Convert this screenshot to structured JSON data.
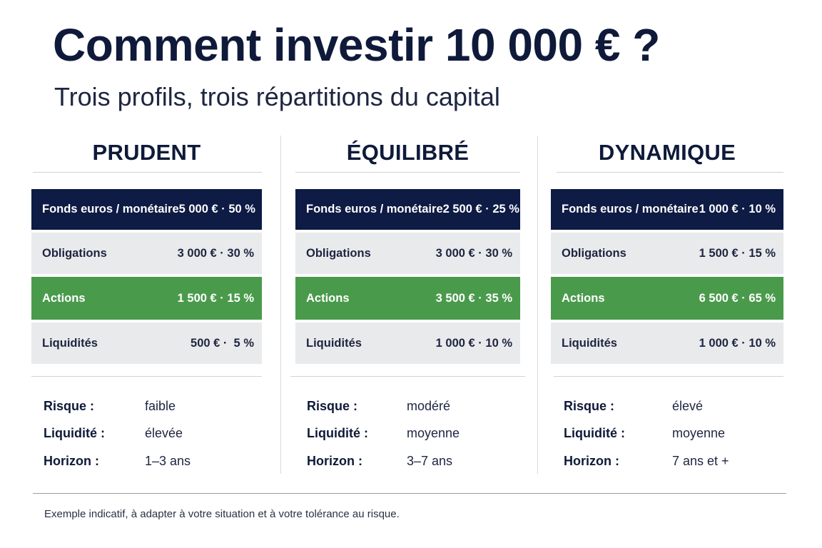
{
  "title": "Comment investir 10 000 € ?",
  "subtitle": "Trois profils, trois répartitions du capital",
  "profiles": [
    {
      "name": "PRUDENT",
      "rows": [
        {
          "label": "Fonds euros / monétaire",
          "value": "5 000 € · 50 %",
          "color": "#0d1b45"
        },
        {
          "label": "Obligations",
          "value": "3 000 € · 30 %",
          "color": "#e9eaec"
        },
        {
          "label": "Actions",
          "value": "1 500 € · 15 %",
          "color": "#4a9a4c"
        },
        {
          "label": "Liquidités",
          "value": "500 € ·  5 %",
          "color": "#e9eaec"
        }
      ],
      "info": [
        {
          "label": "Risque :",
          "value": "faible"
        },
        {
          "label": "Liquidité :",
          "value": "élevée"
        },
        {
          "label": "Horizon :",
          "value": "1–3 ans"
        }
      ]
    },
    {
      "name": "ÉQUILIBRÉ",
      "rows": [
        {
          "label": "Fonds euros / monétaire",
          "value": "2 500 € · 25 %",
          "color": "#0d1b45"
        },
        {
          "label": "Obligations",
          "value": "3 000 € · 30 %",
          "color": "#e9eaec"
        },
        {
          "label": "Actions",
          "value": "3 500 € · 35 %",
          "color": "#4a9a4c"
        },
        {
          "label": "Liquidités",
          "value": "1 000 € · 10 %",
          "color": "#e9eaec"
        }
      ],
      "info": [
        {
          "label": "Risque :",
          "value": "modéré"
        },
        {
          "label": "Liquidité :",
          "value": "moyenne"
        },
        {
          "label": "Horizon :",
          "value": "3–7 ans"
        }
      ]
    },
    {
      "name": "DYNAMIQUE",
      "rows": [
        {
          "label": "Fonds euros / monétaire",
          "value": "1 000 € · 10 %",
          "color": "#0d1b45"
        },
        {
          "label": "Obligations",
          "value": "1 500 € · 15 %",
          "color": "#e9eaec"
        },
        {
          "label": "Actions",
          "value": "6 500 € · 65 %",
          "color": "#4a9a4c"
        },
        {
          "label": "Liquidités",
          "value": "1 000 € · 10 %",
          "color": "#e9eaec"
        }
      ],
      "info": [
        {
          "label": "Risque :",
          "value": "élevé"
        },
        {
          "label": "Liquidité :",
          "value": "moyenne"
        },
        {
          "label": "Horizon :",
          "value": "7 ans et +"
        }
      ]
    }
  ],
  "footnote": "Exemple indicatif, à adapter à votre situation et à votre tolérance au risque."
}
